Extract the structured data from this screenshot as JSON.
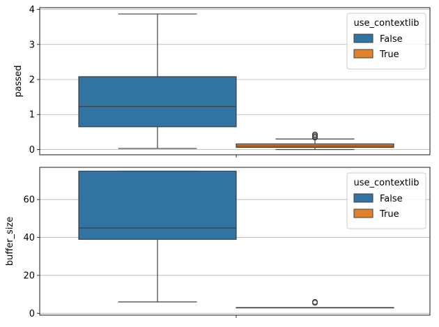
{
  "chart_data": [
    {
      "type": "box",
      "ylabel": "passed",
      "ylim": [
        -0.15,
        4.05
      ],
      "yticks": [
        0,
        1,
        2,
        3,
        4
      ],
      "grid": "y",
      "legend": {
        "title": "use_contextlib",
        "placement": "top-right",
        "entries": [
          "False",
          "True"
        ]
      },
      "series": [
        {
          "name": "False",
          "color": "#3274a1",
          "whisker_low": 0.03,
          "q1": 0.65,
          "median": 1.23,
          "q3": 2.08,
          "whisker_high": 3.87,
          "outliers": []
        },
        {
          "name": "True",
          "color": "#e1812c",
          "whisker_low": 0.0,
          "q1": 0.06,
          "median": 0.1,
          "q3": 0.16,
          "whisker_high": 0.3,
          "outliers": [
            0.34,
            0.37,
            0.4,
            0.43
          ]
        }
      ]
    },
    {
      "type": "box",
      "ylabel": "buffer_size",
      "ylim": [
        -1,
        77
      ],
      "yticks": [
        0,
        20,
        40,
        60
      ],
      "grid": "y",
      "legend": {
        "title": "use_contextlib",
        "placement": "top-right",
        "entries": [
          "False",
          "True"
        ]
      },
      "series": [
        {
          "name": "False",
          "color": "#3274a1",
          "whisker_low": 6,
          "q1": 39,
          "median": 45,
          "q3": 75,
          "whisker_high": 75,
          "outliers": []
        },
        {
          "name": "True",
          "color": "#e1812c",
          "whisker_low": 3,
          "q1": 3,
          "median": 3,
          "q3": 3,
          "whisker_high": 3,
          "outliers": [
            5.5,
            6
          ]
        }
      ]
    }
  ]
}
